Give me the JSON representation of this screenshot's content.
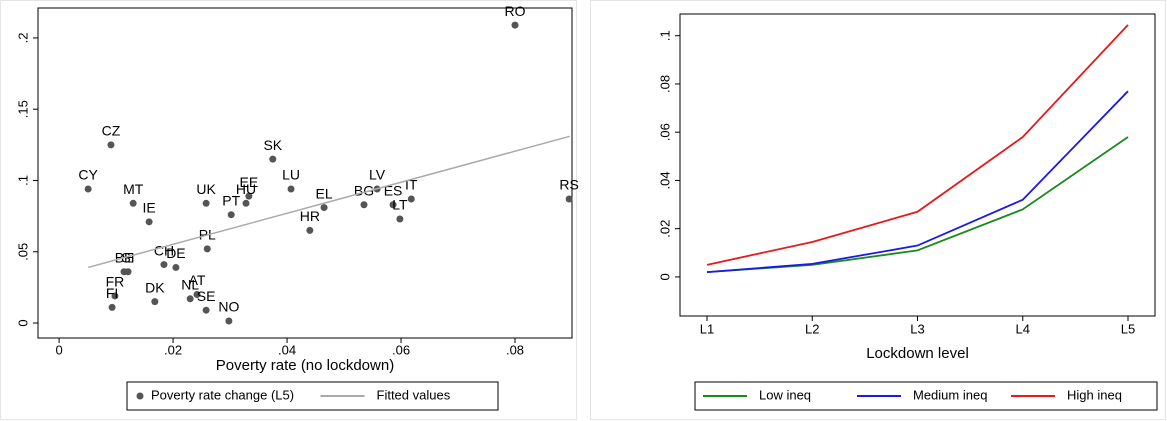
{
  "chart_data": [
    {
      "type": "scatter",
      "x_label": "Poverty rate (no lockdown)",
      "xlim": [
        -0.0037,
        0.09
      ],
      "ylim": [
        -0.0105,
        0.221
      ],
      "xticks": [
        0,
        {
          "value": 0.02,
          "label": ".02"
        },
        {
          "value": 0.04,
          "label": ".04"
        },
        {
          "value": 0.06,
          "label": ".06"
        },
        {
          "value": 0.08,
          "label": ".08"
        }
      ],
      "yticks": [
        0,
        {
          "value": 0.05,
          "label": ".05"
        },
        {
          "value": 0.1,
          "label": ".1"
        },
        {
          "value": 0.15,
          "label": ".15"
        },
        {
          "value": 0.2,
          "label": ".2"
        }
      ],
      "series": [
        {
          "name": "Poverty rate change (L5)",
          "color": "#555555",
          "labels": [
            "RO",
            "CZ",
            "CY",
            "MT",
            "IE",
            "UK",
            "PT",
            "EE",
            "HU",
            "SK",
            "LU",
            "EL",
            "BG",
            "LV",
            "ES",
            "IT",
            "LT",
            "RS",
            "HR",
            "PL",
            "CH",
            "DE",
            "BE",
            "SI",
            "DK",
            "NL",
            "AT",
            "SE",
            "NO",
            "FR",
            "FI"
          ],
          "x": [
            0.08,
            0.0091,
            0.0051,
            0.013,
            0.0158,
            0.0258,
            0.0302,
            0.0333,
            0.0328,
            0.0375,
            0.0407,
            0.0465,
            0.0535,
            0.0558,
            0.0586,
            0.0618,
            0.0598,
            0.0895,
            0.044,
            0.026,
            0.0184,
            0.0205,
            0.0114,
            0.0121,
            0.0168,
            0.023,
            0.0242,
            0.0258,
            0.0298,
            0.0098,
            0.0093
          ],
          "values": [
            0.209,
            0.125,
            0.094,
            0.084,
            0.071,
            0.084,
            0.076,
            0.089,
            0.084,
            0.115,
            0.094,
            0.081,
            0.083,
            0.094,
            0.083,
            0.087,
            0.073,
            0.087,
            0.065,
            0.052,
            0.041,
            0.039,
            0.036,
            0.036,
            0.015,
            0.017,
            0.02,
            0.009,
            0.0014,
            0.019,
            0.011
          ]
        },
        {
          "name": "Fitted values",
          "color": "#aaaaaa",
          "x": [
            0.0051,
            0.0896
          ],
          "values": [
            0.039,
            0.131
          ]
        }
      ]
    },
    {
      "type": "line",
      "x_label": "Lockdown level",
      "categories": [
        "L1",
        "L2",
        "L3",
        "L4",
        "L5"
      ],
      "ylim": [
        -0.0162,
        0.109
      ],
      "yticks": [
        0,
        {
          "value": 0.02,
          "label": ".02"
        },
        {
          "value": 0.04,
          "label": ".04"
        },
        {
          "value": 0.06,
          "label": ".06"
        },
        {
          "value": 0.08,
          "label": ".08"
        },
        {
          "value": 0.1,
          "label": ".1"
        }
      ],
      "series": [
        {
          "name": "Low ineq",
          "color": "#1a8a1a",
          "values": [
            0.002,
            0.005,
            0.011,
            0.028,
            0.058
          ]
        },
        {
          "name": "Medium ineq",
          "color": "#1a1ae6",
          "values": [
            0.002,
            0.0054,
            0.013,
            0.032,
            0.077
          ]
        },
        {
          "name": "High ineq",
          "color": "#e61a1a",
          "values": [
            0.005,
            0.0145,
            0.027,
            0.058,
            0.1045
          ]
        }
      ]
    }
  ]
}
